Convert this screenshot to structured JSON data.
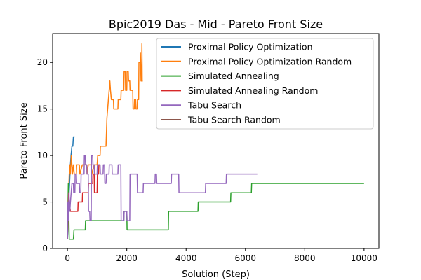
{
  "chart_data": {
    "type": "line",
    "title": "Bpic2019 Das - Mid - Pareto Front Size",
    "xlabel": "Solution (Step)",
    "ylabel": "Pareto Front Size",
    "xlim": [
      -500,
      10500
    ],
    "ylim": [
      0,
      23.1
    ],
    "xticks": [
      0,
      2000,
      4000,
      6000,
      8000,
      10000
    ],
    "yticks": [
      0,
      5,
      10,
      15,
      20
    ],
    "grid": false,
    "legend_position": "top-right",
    "series": [
      {
        "name": "Proximal Policy Optimization",
        "color": "#1f77b4",
        "points": [
          [
            0,
            1
          ],
          [
            15,
            2
          ],
          [
            25,
            3
          ],
          [
            35,
            4
          ],
          [
            45,
            5
          ],
          [
            55,
            6
          ],
          [
            70,
            7
          ],
          [
            85,
            8
          ],
          [
            100,
            9
          ],
          [
            120,
            10
          ],
          [
            150,
            11
          ],
          [
            180,
            11
          ],
          [
            200,
            12
          ],
          [
            240,
            12
          ]
        ]
      },
      {
        "name": "Proximal Policy Optimization Random",
        "color": "#ff7f0e",
        "points": [
          [
            0,
            1
          ],
          [
            20,
            4
          ],
          [
            40,
            6
          ],
          [
            60,
            8
          ],
          [
            80,
            9
          ],
          [
            100,
            8
          ],
          [
            130,
            10
          ],
          [
            150,
            9
          ],
          [
            170,
            8
          ],
          [
            200,
            9
          ],
          [
            230,
            8
          ],
          [
            300,
            8
          ],
          [
            310,
            9
          ],
          [
            400,
            9
          ],
          [
            420,
            8
          ],
          [
            500,
            9
          ],
          [
            650,
            9
          ],
          [
            660,
            8
          ],
          [
            700,
            9
          ],
          [
            800,
            9
          ],
          [
            820,
            8
          ],
          [
            900,
            9
          ],
          [
            1000,
            9
          ],
          [
            1020,
            10
          ],
          [
            1100,
            10
          ],
          [
            1110,
            11
          ],
          [
            1300,
            11
          ],
          [
            1330,
            14
          ],
          [
            1380,
            16
          ],
          [
            1430,
            18
          ],
          [
            1450,
            17
          ],
          [
            1480,
            16
          ],
          [
            1550,
            16
          ],
          [
            1560,
            15
          ],
          [
            1700,
            15
          ],
          [
            1710,
            16
          ],
          [
            1800,
            16
          ],
          [
            1810,
            17
          ],
          [
            1900,
            17
          ],
          [
            1910,
            19
          ],
          [
            1950,
            19
          ],
          [
            1960,
            17
          ],
          [
            2000,
            17
          ],
          [
            2010,
            19
          ],
          [
            2050,
            19
          ],
          [
            2060,
            18
          ],
          [
            2100,
            18
          ],
          [
            2110,
            17
          ],
          [
            2200,
            17
          ],
          [
            2210,
            15
          ],
          [
            2250,
            15
          ],
          [
            2260,
            16
          ],
          [
            2300,
            16
          ],
          [
            2310,
            15
          ],
          [
            2350,
            15
          ],
          [
            2360,
            16
          ],
          [
            2400,
            16
          ],
          [
            2410,
            20
          ],
          [
            2450,
            20
          ],
          [
            2460,
            21
          ],
          [
            2480,
            18
          ],
          [
            2500,
            18
          ],
          [
            2510,
            22
          ],
          [
            2520,
            18
          ],
          [
            2540,
            18
          ]
        ]
      },
      {
        "name": "Simulated Annealing",
        "color": "#2ca02c",
        "points": [
          [
            0,
            1
          ],
          [
            30,
            7
          ],
          [
            60,
            1
          ],
          [
            200,
            1
          ],
          [
            220,
            2
          ],
          [
            600,
            2
          ],
          [
            610,
            3
          ],
          [
            1900,
            3
          ],
          [
            1910,
            4
          ],
          [
            2000,
            4
          ],
          [
            2010,
            2
          ],
          [
            3400,
            2
          ],
          [
            3410,
            4
          ],
          [
            4400,
            4
          ],
          [
            4410,
            5
          ],
          [
            5500,
            5
          ],
          [
            5510,
            6
          ],
          [
            6200,
            6
          ],
          [
            6210,
            7
          ],
          [
            10000,
            7
          ]
        ]
      },
      {
        "name": "Simulated Annealing Random",
        "color": "#d62728",
        "points": [
          [
            0,
            1
          ],
          [
            20,
            4
          ],
          [
            40,
            6
          ],
          [
            60,
            5
          ],
          [
            100,
            4
          ],
          [
            350,
            4
          ],
          [
            360,
            5
          ],
          [
            500,
            5
          ],
          [
            510,
            6
          ],
          [
            700,
            6
          ],
          [
            710,
            7
          ],
          [
            850,
            7
          ],
          [
            860,
            8
          ],
          [
            900,
            8
          ],
          [
            910,
            6
          ],
          [
            1000,
            6
          ],
          [
            1010,
            8
          ],
          [
            1050,
            8
          ],
          [
            1060,
            9
          ],
          [
            1100,
            9
          ]
        ]
      },
      {
        "name": "Tabu Search",
        "color": "#9467bd",
        "points": [
          [
            0,
            1
          ],
          [
            15,
            5
          ],
          [
            30,
            3
          ],
          [
            50,
            6
          ],
          [
            80,
            4
          ],
          [
            100,
            5
          ],
          [
            150,
            7
          ],
          [
            200,
            7
          ],
          [
            210,
            6
          ],
          [
            250,
            6
          ],
          [
            260,
            8
          ],
          [
            300,
            8
          ],
          [
            310,
            7
          ],
          [
            400,
            7
          ],
          [
            410,
            6
          ],
          [
            450,
            6
          ],
          [
            460,
            8
          ],
          [
            560,
            8
          ],
          [
            570,
            10
          ],
          [
            600,
            10
          ],
          [
            610,
            9
          ],
          [
            650,
            9
          ],
          [
            660,
            8
          ],
          [
            700,
            8
          ],
          [
            710,
            4
          ],
          [
            750,
            4
          ],
          [
            760,
            3
          ],
          [
            800,
            3
          ],
          [
            810,
            10
          ],
          [
            850,
            10
          ],
          [
            860,
            9
          ],
          [
            900,
            9
          ],
          [
            910,
            8
          ],
          [
            1000,
            8
          ],
          [
            1010,
            9
          ],
          [
            1100,
            9
          ],
          [
            1110,
            8
          ],
          [
            1200,
            8
          ],
          [
            1210,
            9
          ],
          [
            1250,
            9
          ],
          [
            1260,
            7
          ],
          [
            1300,
            7
          ],
          [
            1310,
            8
          ],
          [
            1400,
            8
          ],
          [
            1410,
            9
          ],
          [
            1500,
            9
          ],
          [
            1510,
            8
          ],
          [
            1700,
            8
          ],
          [
            1710,
            9
          ],
          [
            1800,
            9
          ],
          [
            1810,
            3
          ],
          [
            1900,
            3
          ],
          [
            1910,
            4
          ],
          [
            2000,
            4
          ],
          [
            2010,
            3
          ],
          [
            2100,
            3
          ],
          [
            2110,
            8
          ],
          [
            2350,
            8
          ],
          [
            2360,
            6
          ],
          [
            2550,
            6
          ],
          [
            2560,
            7
          ],
          [
            2950,
            7
          ],
          [
            2960,
            8
          ],
          [
            3000,
            8
          ],
          [
            3010,
            7
          ],
          [
            3500,
            7
          ],
          [
            3510,
            8
          ],
          [
            3750,
            8
          ],
          [
            3760,
            6
          ],
          [
            4650,
            6
          ],
          [
            4660,
            7
          ],
          [
            5350,
            7
          ],
          [
            5360,
            8
          ],
          [
            6400,
            8
          ]
        ]
      },
      {
        "name": "Tabu Search Random",
        "color": "#8c564b",
        "points": []
      }
    ]
  }
}
